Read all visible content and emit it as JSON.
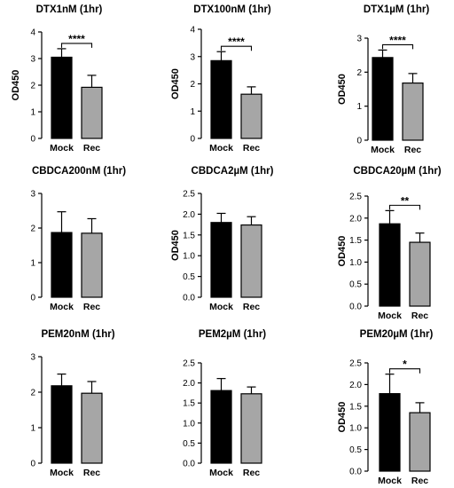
{
  "figure_title": "",
  "colors": {
    "mock": "#000000",
    "rec": "#a6a6a6",
    "axis": "#000000"
  },
  "chart_data": [
    {
      "type": "bar",
      "title": "DTX1nM (1hr)",
      "ylabel": "OD450",
      "xlabel": "",
      "categories": [
        "Mock",
        "Rec"
      ],
      "values": [
        3.05,
        1.92
      ],
      "errors": [
        0.32,
        0.45
      ],
      "ylim": [
        0,
        4
      ],
      "yticks": [
        "0",
        "1",
        "2",
        "3",
        "4"
      ],
      "significance": "****",
      "grid": false
    },
    {
      "type": "bar",
      "title": "DTX100nM (1hr)",
      "ylabel": "OD450",
      "xlabel": "",
      "categories": [
        "Mock",
        "Rec"
      ],
      "values": [
        2.85,
        1.62
      ],
      "errors": [
        0.33,
        0.27
      ],
      "ylim": [
        0,
        4
      ],
      "yticks": [
        "0",
        "1",
        "2",
        "3",
        "4"
      ],
      "significance": "****",
      "grid": false
    },
    {
      "type": "bar",
      "title": "DTX1µM (1hr)",
      "ylabel": "OD450",
      "xlabel": "",
      "categories": [
        "Mock",
        "Rec"
      ],
      "values": [
        2.43,
        1.68
      ],
      "errors": [
        0.22,
        0.28
      ],
      "ylim": [
        0,
        3
      ],
      "yticks": [
        "0",
        "1",
        "2",
        "3"
      ],
      "significance": "****",
      "grid": false
    },
    {
      "type": "bar",
      "title": "CBDCA200nM (1hr)",
      "ylabel": "",
      "xlabel": "",
      "categories": [
        "Mock",
        "Rec"
      ],
      "values": [
        1.87,
        1.85
      ],
      "errors": [
        0.6,
        0.42
      ],
      "ylim": [
        0,
        3
      ],
      "yticks": [
        "0",
        "1",
        "2",
        "3"
      ],
      "significance": "",
      "grid": false
    },
    {
      "type": "bar",
      "title": "CBDCA2µM (1hr)",
      "ylabel": "OD450",
      "xlabel": "",
      "categories": [
        "Mock",
        "Rec"
      ],
      "values": [
        1.8,
        1.74
      ],
      "errors": [
        0.22,
        0.2
      ],
      "ylim": [
        0,
        2.5
      ],
      "yticks": [
        "0.0",
        "0.5",
        "1.0",
        "1.5",
        "2.0",
        "2.5"
      ],
      "significance": "",
      "grid": false
    },
    {
      "type": "bar",
      "title": "CBDCA20µM (1hr)",
      "ylabel": "OD450",
      "xlabel": "",
      "categories": [
        "Mock",
        "Rec"
      ],
      "values": [
        1.87,
        1.45
      ],
      "errors": [
        0.3,
        0.21
      ],
      "ylim": [
        0,
        2.5
      ],
      "yticks": [
        "0.0",
        "0.5",
        "1.0",
        "1.5",
        "2.0",
        "2.5"
      ],
      "significance": "**",
      "grid": false
    },
    {
      "type": "bar",
      "title": "PEM20nM (1hr)",
      "ylabel": "",
      "xlabel": "",
      "categories": [
        "Mock",
        "Rec"
      ],
      "values": [
        2.18,
        1.97
      ],
      "errors": [
        0.33,
        0.33
      ],
      "ylim": [
        0,
        3
      ],
      "yticks": [
        "0",
        "1",
        "2",
        "3"
      ],
      "significance": "",
      "grid": false
    },
    {
      "type": "bar",
      "title": "PEM2µM (1hr)",
      "ylabel": "",
      "xlabel": "",
      "categories": [
        "Mock",
        "Rec"
      ],
      "values": [
        1.81,
        1.73
      ],
      "errors": [
        0.3,
        0.17
      ],
      "ylim": [
        0,
        2.5
      ],
      "yticks": [
        "0.0",
        "0.5",
        "1.0",
        "1.5",
        "2.0",
        "2.5"
      ],
      "significance": "",
      "grid": false
    },
    {
      "type": "bar",
      "title": "PEM20µM (1hr)",
      "ylabel": "OD450",
      "xlabel": "",
      "categories": [
        "Mock",
        "Rec"
      ],
      "values": [
        1.79,
        1.35
      ],
      "errors": [
        0.45,
        0.23
      ],
      "ylim": [
        0,
        2.5
      ],
      "yticks": [
        "0.0",
        "0.5",
        "1.0",
        "1.5",
        "2.0",
        "2.5"
      ],
      "significance": "*",
      "grid": false
    }
  ]
}
